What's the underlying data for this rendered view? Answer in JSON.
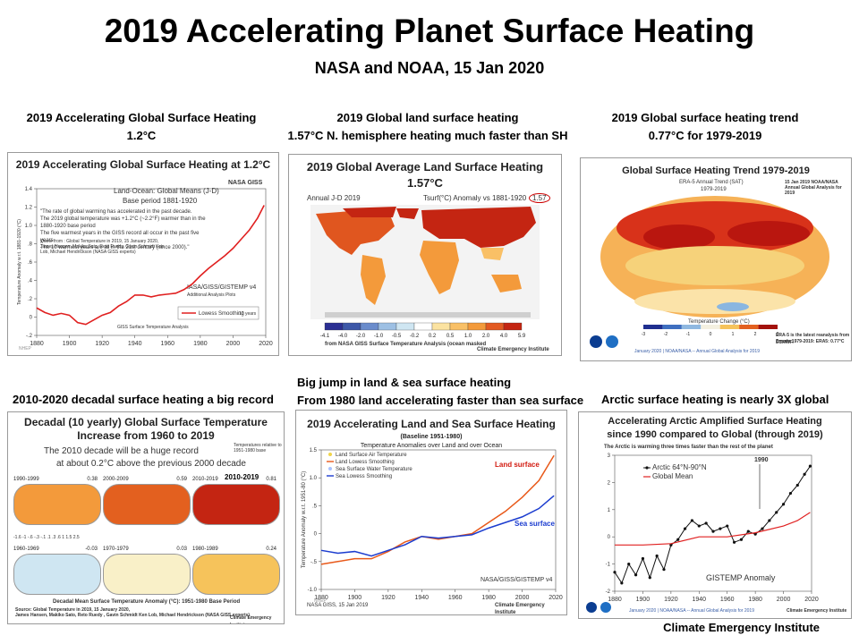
{
  "header": {
    "title": "2019 Accelerating Planet Surface Heating",
    "subtitle": "NASA and NOAA, 15 Jan 2020"
  },
  "captions": {
    "c1_line1": "2019 Accelerating Global Surface Heating",
    "c1_line2": "1.2°C",
    "c2_line1": "2019 Global land surface heating",
    "c2_line2": "1.57°C  N. hemisphere heating much faster than SH",
    "c3_line1": "2019 Global surface heating trend",
    "c3_line2": "0.77°C   for 1979-2019",
    "c4_line1": "2010-2020  decadal surface heating a big record",
    "c5_line1": "Big jump in land & sea surface heating",
    "c5_line2": "From 1980  land accelerating faster than sea surface",
    "c6_line1": "Arctic surface heating is nearly 3X global"
  },
  "footer": "Climate Emergency Institute",
  "panel1": {
    "title": "2019 Accelerating Global Surface Heating at 1.2°C",
    "badge": "NASA GISS",
    "sub1": "Land-Ocean: Global Means (J-D)",
    "sub2": "Base period 1881-1920",
    "bullets": [
      "\"The rate of global warming has accelerated in the past decade.",
      "The 2019 global temperature was +1.2°C (~2.2°F) warmer than in the 1880-1920 base period",
      "The five warmest years in the GISS record all occur in the past five years",
      "The 10 warmest years are all in the 21st century (since 2000).\""
    ],
    "quote": "Quote from : Global Temperature in 2019, 15 January 2020, James Hansen, Makiko Sato, Reto Ruedy, Gavin Schmidt Ken Lob, Michael Hendrickson (NASA GISS experts)",
    "credit": "IASA/GISS/GISTEMP v4",
    "additional": "Additional Analysis Plots",
    "giss": "GISS Surface Temperature Analysis",
    "legend": "Lowess Smoothing",
    "legend_tag": "10 years",
    "ylabel": "Temperature Anomaly w.r.t. 1881-1920 (°C)",
    "watermark": "NHEP"
  },
  "panel2": {
    "title": "2019 Global Average Land Surface Heating",
    "value": "1.57°C",
    "left_label": "Annual J-D 2019",
    "mid_label": "Tsurf(°C) Anomaly vs 1881-1920",
    "circle": "1.57",
    "scale": [
      "-4.1",
      "-4.0",
      "-2.0",
      "-1.0",
      "-0.5",
      "-0.2",
      "0.2",
      "0.5",
      "1.0",
      "2.0",
      "4.0",
      "5.9"
    ],
    "colors": [
      "#2b2f93",
      "#3d58a8",
      "#6a8ccc",
      "#9dc0e4",
      "#cfe6f2",
      "#ffffff",
      "#fbe3a1",
      "#f9c066",
      "#f39a3b",
      "#e35a22",
      "#c42512"
    ],
    "source": "from NASA GISS Surface Temperature Analysis (ocean masked",
    "inst": "Climate Emergency Institute"
  },
  "panel3": {
    "title": "Global Surface Heating Trend 1979-2019",
    "sub1": "ERA-5 Annual Trend (SAT)",
    "sub2": "1979-2019",
    "corner": "15 Jan 2019 NOAA/NASA Annual Global Analysis for 2019",
    "legend_title": "Temperature Change (°C)",
    "scale": [
      "-3",
      "-2",
      "-1",
      "0",
      "1",
      "2",
      "3"
    ],
    "note1": "ERA-5 is the latest reanalysis from ECMWF.",
    "note2": "Trends 1979-2019: ERA5: 0.77°C",
    "bottom": "January 2020  |  NOAA/NASA -- Annual Global Analysis for 2019"
  },
  "panel4": {
    "title1": "Decadal (10 yearly) Global Surface Temperature",
    "title2": "Increase from 1960 to 2019",
    "note1": "The 2010 decade will be a huge record",
    "note2": "at about 0.2°C above the previous 2000 decade",
    "rel": "Temperatures relative to 1951-1980  base",
    "maps": [
      {
        "label": "1990-1999",
        "val": "0.38"
      },
      {
        "label": "2000-2009",
        "val": "0.59"
      },
      {
        "label": "2010-2019",
        "val": "0.81"
      },
      {
        "label": "1960-1969",
        "val": "-0.03"
      },
      {
        "label": "1970-1979",
        "val": "0.03"
      },
      {
        "label": "1980-1989",
        "val": "0.24"
      }
    ],
    "highlight": "2010-2019",
    "scale_ticks": "-1.6  -1  -.6  -.3  -.1  .1  .3  .6  1  1.5 2.5",
    "caption": "Decadal Mean Surface Temperature Anomaly (°C): 1951-1980 Base Period",
    "source1": "Source: Global Temperature in 2019, 15 January 2020,",
    "source2": "James Hansen, Makiko Sato, Reto Ruedy , Gavin Schmidt Ken Lob, Michael Hendrickson (NASA GISS experts)",
    "inst": "Climate Emergency Institute"
  },
  "panel5": {
    "title": "2019 Accelerating Land and Sea Surface Heating",
    "baseline": "(Baseline 1951-1980)",
    "subtitle": "Temperature Anomalies over Land and over Ocean",
    "legend": [
      "Land Surface Air Temperature",
      "Land Lowess Smoothing",
      "Sea Surface Water Temperature",
      "Sea Lowess Smoothing"
    ],
    "land_label": "Land surface",
    "sea_label": "Sea surface",
    "credit": "NASA/GISS/GISTEMP v4",
    "footer_left": "NASA GISS, 15 Jan 2019",
    "footer_right": "Climate Emergency Institute",
    "ylabel": "Temperature Anomaly w.r.t. 1951-80 (°C)",
    "watermark": "NHEP"
  },
  "panel6": {
    "title1": "Accelerating Arctic Amplified Surface Heating",
    "title2": "since 1990 compared to Global (through 2019)",
    "note": "The Arctic is warming three times faster than the rest of the planet",
    "year_label": "1990",
    "legend": [
      "Arctic 64°N-90°N",
      "Global Mean"
    ],
    "gistemp": "GISTEMP Anomaly",
    "bottom": "January 2020  |  NOAA/NASA -- Annual Global Analysis for 2019",
    "inst": "Climate Emergency Institute"
  },
  "chart_data": [
    {
      "type": "line",
      "title": "2019 Accelerating Global Surface Heating at 1.2°C",
      "xlabel": "",
      "ylabel": "Temperature Anomaly w.r.t. 1881-1920 (°C)",
      "xlim": [
        1880,
        2020
      ],
      "ylim": [
        -0.2,
        1.4
      ],
      "xticks": [
        "1880",
        "1900",
        "1920",
        "1940",
        "1960",
        "1980",
        "2000",
        "2020"
      ],
      "yticks": [
        "-.2",
        "0",
        ".2",
        ".4",
        ".6",
        ".8",
        "1.0",
        "1.2",
        "1.4"
      ],
      "series": [
        {
          "name": "Lowess Smoothing",
          "x": [
            1880,
            1885,
            1890,
            1895,
            1900,
            1905,
            1910,
            1915,
            1920,
            1925,
            1930,
            1935,
            1940,
            1945,
            1950,
            1955,
            1960,
            1965,
            1970,
            1975,
            1980,
            1985,
            1990,
            1995,
            2000,
            2005,
            2010,
            2015,
            2019
          ],
          "y": [
            0.1,
            0.05,
            0.02,
            0.04,
            0.02,
            -0.06,
            -0.08,
            -0.03,
            0.02,
            0.05,
            0.12,
            0.17,
            0.24,
            0.24,
            0.22,
            0.24,
            0.25,
            0.26,
            0.3,
            0.36,
            0.45,
            0.53,
            0.6,
            0.67,
            0.75,
            0.85,
            0.95,
            1.08,
            1.22
          ]
        }
      ]
    },
    {
      "type": "line",
      "title": "2019 Accelerating Land and Sea Surface Heating",
      "ylabel": "Temperature Anomaly w.r.t. 1951-80 (°C)",
      "xlim": [
        1880,
        2020
      ],
      "ylim": [
        -1.0,
        1.5
      ],
      "xticks": [
        "1880",
        "1900",
        "1920",
        "1940",
        "1960",
        "1980",
        "2000",
        "2020"
      ],
      "yticks": [
        "-1.0",
        "-.5",
        "0",
        ".5",
        "1.0",
        "1.5"
      ],
      "series": [
        {
          "name": "Land Lowess Smoothing",
          "x": [
            1880,
            1890,
            1900,
            1910,
            1920,
            1930,
            1940,
            1950,
            1960,
            1970,
            1980,
            1990,
            2000,
            2010,
            2019
          ],
          "y": [
            -0.55,
            -0.5,
            -0.45,
            -0.45,
            -0.32,
            -0.15,
            -0.05,
            -0.1,
            -0.05,
            0.0,
            0.2,
            0.4,
            0.65,
            0.95,
            1.4
          ]
        },
        {
          "name": "Sea Lowess Smoothing",
          "x": [
            1880,
            1890,
            1900,
            1910,
            1920,
            1930,
            1940,
            1950,
            1960,
            1970,
            1980,
            1990,
            2000,
            2010,
            2019
          ],
          "y": [
            -0.3,
            -0.35,
            -0.32,
            -0.4,
            -0.3,
            -0.2,
            -0.05,
            -0.08,
            -0.05,
            -0.02,
            0.1,
            0.2,
            0.3,
            0.45,
            0.68
          ]
        }
      ]
    },
    {
      "type": "line",
      "title": "Accelerating Arctic Amplified Surface Heating",
      "xlim": [
        1880,
        2020
      ],
      "ylim": [
        -2,
        3
      ],
      "xticks": [
        "1880",
        "1900",
        "1920",
        "1940",
        "1960",
        "1980",
        "2000",
        "2020"
      ],
      "yticks": [
        "-2",
        "-1",
        "0",
        "1",
        "2",
        "3"
      ],
      "series": [
        {
          "name": "Arctic 64°N-90°N",
          "x": [
            1880,
            1885,
            1890,
            1895,
            1900,
            1905,
            1910,
            1915,
            1920,
            1925,
            1930,
            1935,
            1940,
            1945,
            1950,
            1955,
            1960,
            1965,
            1970,
            1975,
            1980,
            1985,
            1990,
            1995,
            2000,
            2005,
            2010,
            2015,
            2019
          ],
          "y": [
            -1.3,
            -1.7,
            -1.0,
            -1.4,
            -0.8,
            -1.5,
            -0.7,
            -1.2,
            -0.3,
            -0.1,
            0.3,
            0.6,
            0.4,
            0.5,
            0.2,
            0.3,
            0.4,
            -0.2,
            -0.1,
            0.2,
            0.1,
            0.3,
            0.6,
            0.9,
            1.2,
            1.6,
            1.9,
            2.3,
            2.6
          ]
        },
        {
          "name": "Global Mean",
          "x": [
            1880,
            1900,
            1920,
            1940,
            1960,
            1980,
            2000,
            2010,
            2019
          ],
          "y": [
            -0.3,
            -0.3,
            -0.25,
            0.0,
            0.0,
            0.15,
            0.4,
            0.6,
            0.9
          ]
        }
      ]
    }
  ]
}
